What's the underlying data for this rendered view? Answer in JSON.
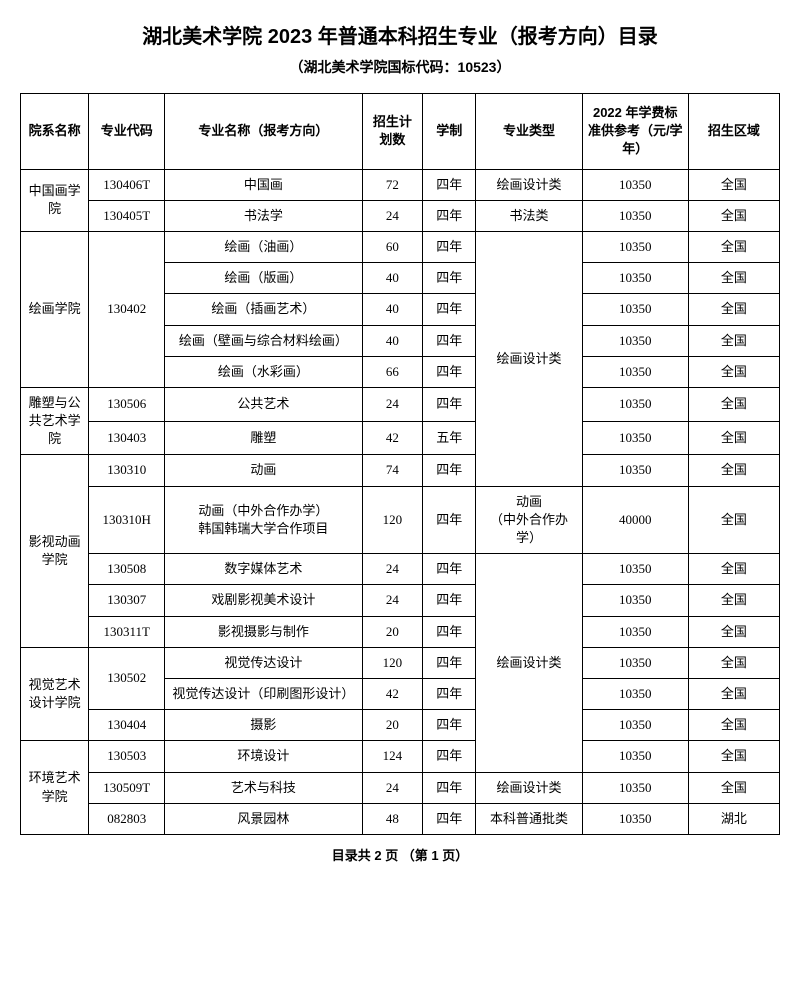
{
  "title": "湖北美术学院 2023 年普通本科招生专业（报考方向）目录",
  "subtitle": "（湖北美术学院国标代码：10523）",
  "columns": [
    "院系名称",
    "专业代码",
    "专业名称（报考方向）",
    "招生计划数",
    "学制",
    "专业类型",
    "2022 年学费标准供参考（元/学年）",
    "招生区域"
  ],
  "footer": "目录共 2 页 （第 1 页）",
  "type_painting": "绘画设计类",
  "type_calli": "书法类",
  "type_anim": "动画\n（中外合作办学）",
  "type_normal": "本科普通批类",
  "dept": {
    "cn": "中国画学院",
    "pa": "绘画学院",
    "sc": "雕塑与公共艺术学院",
    "an": "影视动画学院",
    "vd": "视觉艺术设计学院",
    "en": "环境艺术学院"
  },
  "r1": {
    "code": "130406T",
    "name": "中国画",
    "plan": "72",
    "dur": "四年",
    "fee": "10350",
    "area": "全国"
  },
  "r2": {
    "code": "130405T",
    "name": "书法学",
    "plan": "24",
    "dur": "四年",
    "fee": "10350",
    "area": "全国"
  },
  "r3": {
    "code": "130402",
    "name": "绘画（油画）",
    "plan": "60",
    "dur": "四年",
    "fee": "10350",
    "area": "全国"
  },
  "r4": {
    "name": "绘画（版画）",
    "plan": "40",
    "dur": "四年",
    "fee": "10350",
    "area": "全国"
  },
  "r5": {
    "name": "绘画（插画艺术）",
    "plan": "40",
    "dur": "四年",
    "fee": "10350",
    "area": "全国"
  },
  "r6": {
    "name": "绘画（壁画与综合材料绘画）",
    "plan": "40",
    "dur": "四年",
    "fee": "10350",
    "area": "全国"
  },
  "r7": {
    "name": "绘画（水彩画）",
    "plan": "66",
    "dur": "四年",
    "fee": "10350",
    "area": "全国"
  },
  "r8": {
    "code": "130506",
    "name": "公共艺术",
    "plan": "24",
    "dur": "四年",
    "fee": "10350",
    "area": "全国"
  },
  "r9": {
    "code": "130403",
    "name": "雕塑",
    "plan": "42",
    "dur": "五年",
    "fee": "10350",
    "area": "全国"
  },
  "r10": {
    "code": "130310",
    "name": "动画",
    "plan": "74",
    "dur": "四年",
    "fee": "10350",
    "area": "全国"
  },
  "r11": {
    "code": "130310H",
    "name": "动画（中外合作办学）\n韩国韩瑞大学合作项目",
    "plan": "120",
    "dur": "四年",
    "fee": "40000",
    "area": "全国"
  },
  "r12": {
    "code": "130508",
    "name": "数字媒体艺术",
    "plan": "24",
    "dur": "四年",
    "fee": "10350",
    "area": "全国"
  },
  "r13": {
    "code": "130307",
    "name": "戏剧影视美术设计",
    "plan": "24",
    "dur": "四年",
    "fee": "10350",
    "area": "全国"
  },
  "r14": {
    "code": "130311T",
    "name": "影视摄影与制作",
    "plan": "20",
    "dur": "四年",
    "fee": "10350",
    "area": "全国"
  },
  "r15": {
    "code": "130502",
    "name": "视觉传达设计",
    "plan": "120",
    "dur": "四年",
    "fee": "10350",
    "area": "全国"
  },
  "r16": {
    "name": "视觉传达设计（印刷图形设计）",
    "plan": "42",
    "dur": "四年",
    "fee": "10350",
    "area": "全国"
  },
  "r17": {
    "code": "130404",
    "name": "摄影",
    "plan": "20",
    "dur": "四年",
    "fee": "10350",
    "area": "全国"
  },
  "r18": {
    "code": "130503",
    "name": "环境设计",
    "plan": "124",
    "dur": "四年",
    "fee": "10350",
    "area": "全国"
  },
  "r19": {
    "code": "130509T",
    "name": "艺术与科技",
    "plan": "24",
    "dur": "四年",
    "fee": "10350",
    "area": "全国"
  },
  "r20": {
    "code": "082803",
    "name": "风景园林",
    "plan": "48",
    "dur": "四年",
    "fee": "10350",
    "area": "湖北"
  }
}
